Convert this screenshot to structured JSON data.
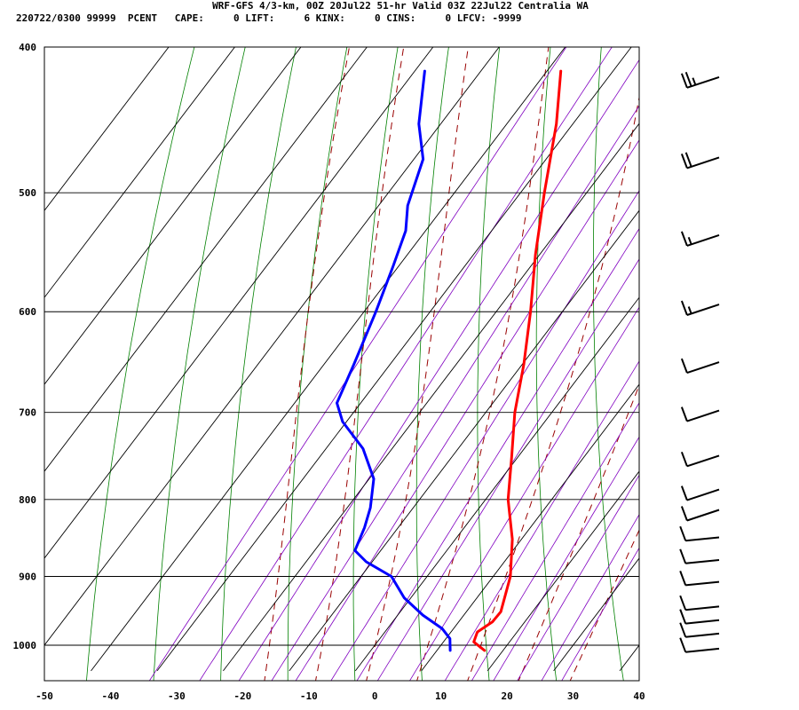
{
  "header": {
    "title": "WRF-GFS 4/3-km, 00Z 20Jul22 51-hr Valid 03Z 22Jul22 Centralia WA",
    "indices": "220722/0300 99999  PCENT   CAPE:     0 LIFT:     6 KINX:     0 CINS:     0 LFCV: -9999"
  },
  "chart_data": {
    "type": "line",
    "title": "WRF-GFS 4/3-km, 00Z 20Jul22 51-hr Valid 03Z 22Jul22 Centralia WA",
    "xlabel": "",
    "ylabel": "",
    "x_axis": {
      "ticks": [
        -50,
        -40,
        -30,
        -20,
        -10,
        0,
        10,
        20,
        30,
        40
      ],
      "range": [
        -50,
        40
      ],
      "skewed": true
    },
    "y_axis": {
      "ticks": [
        400,
        500,
        600,
        700,
        800,
        900,
        1000
      ],
      "range": [
        1040,
        400
      ],
      "scale": "log"
    },
    "grid": true,
    "series": [
      {
        "kind": "temperature",
        "color": "#ff0000",
        "points": [
          {
            "p": 1008,
            "t": 17.2
          },
          {
            "p": 995,
            "t": 14.6
          },
          {
            "p": 980,
            "t": 14.0
          },
          {
            "p": 965,
            "t": 15.1
          },
          {
            "p": 950,
            "t": 15.2
          },
          {
            "p": 900,
            "t": 12.6
          },
          {
            "p": 850,
            "t": 8.6
          },
          {
            "p": 800,
            "t": 3.4
          },
          {
            "p": 750,
            "t": -0.9
          },
          {
            "p": 700,
            "t": -5.6
          },
          {
            "p": 650,
            "t": -9.8
          },
          {
            "p": 600,
            "t": -14.8
          },
          {
            "p": 550,
            "t": -20.6
          },
          {
            "p": 500,
            "t": -26.4
          },
          {
            "p": 450,
            "t": -32.5
          },
          {
            "p": 415,
            "t": -37.9
          }
        ]
      },
      {
        "kind": "dewpoint",
        "color": "#0000ff",
        "points": [
          {
            "p": 1008,
            "t": 12.0
          },
          {
            "p": 990,
            "t": 10.6
          },
          {
            "p": 975,
            "t": 8.3
          },
          {
            "p": 955,
            "t": 3.8
          },
          {
            "p": 930,
            "t": -1.0
          },
          {
            "p": 900,
            "t": -5.4
          },
          {
            "p": 880,
            "t": -10.9
          },
          {
            "p": 865,
            "t": -13.9
          },
          {
            "p": 835,
            "t": -15.1
          },
          {
            "p": 810,
            "t": -16.5
          },
          {
            "p": 775,
            "t": -19.3
          },
          {
            "p": 740,
            "t": -24.4
          },
          {
            "p": 710,
            "t": -30.6
          },
          {
            "p": 690,
            "t": -33.6
          },
          {
            "p": 650,
            "t": -35.5
          },
          {
            "p": 600,
            "t": -38.2
          },
          {
            "p": 560,
            "t": -40.8
          },
          {
            "p": 530,
            "t": -43.0
          },
          {
            "p": 510,
            "t": -45.6
          },
          {
            "p": 475,
            "t": -48.6
          },
          {
            "p": 450,
            "t": -53.3
          },
          {
            "p": 415,
            "t": -58.5
          }
        ]
      }
    ],
    "wind_barbs": [
      {
        "p": 420,
        "speed_kt": 25,
        "dir": "west-southwest"
      },
      {
        "p": 475,
        "speed_kt": 20,
        "dir": "west-southwest"
      },
      {
        "p": 535,
        "speed_kt": 15,
        "dir": "west-southwest"
      },
      {
        "p": 595,
        "speed_kt": 15,
        "dir": "west-southwest"
      },
      {
        "p": 650,
        "speed_kt": 10,
        "dir": "west-southwest"
      },
      {
        "p": 700,
        "speed_kt": 10,
        "dir": "west-southwest"
      },
      {
        "p": 750,
        "speed_kt": 10,
        "dir": "west-southwest"
      },
      {
        "p": 790,
        "speed_kt": 10,
        "dir": "west-southwest"
      },
      {
        "p": 815,
        "speed_kt": 10,
        "dir": "west-southwest"
      },
      {
        "p": 850,
        "speed_kt": 10,
        "dir": "west"
      },
      {
        "p": 880,
        "speed_kt": 10,
        "dir": "west"
      },
      {
        "p": 910,
        "speed_kt": 10,
        "dir": "west"
      },
      {
        "p": 945,
        "speed_kt": 10,
        "dir": "west"
      },
      {
        "p": 965,
        "speed_kt": 10,
        "dir": "west"
      },
      {
        "p": 985,
        "speed_kt": 10,
        "dir": "west"
      },
      {
        "p": 1008,
        "speed_kt": 10,
        "dir": "west"
      }
    ],
    "colors": {
      "isotherm_grid": "#000000",
      "dry_adiabat": "#008000",
      "moist_adiabat": "#990000",
      "mixing_ratio": "#8000c0",
      "wind_barb": "#000000"
    }
  }
}
